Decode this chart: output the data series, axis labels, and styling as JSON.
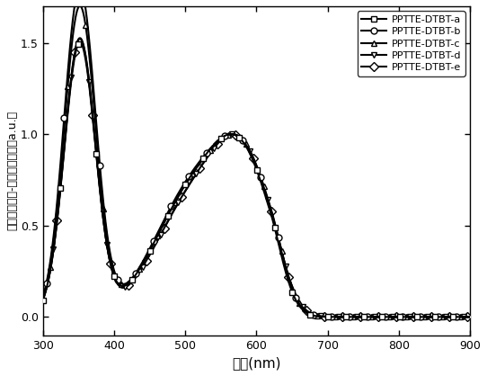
{
  "xlabel": "波长(nm)",
  "ylabel": "归一化的紫外-可见吸收强度（a.u.）",
  "xlim": [
    300,
    900
  ],
  "ylim": [
    -0.1,
    1.7
  ],
  "yticks": [
    0.0,
    0.5,
    1.0,
    1.5
  ],
  "xticks": [
    300,
    400,
    500,
    600,
    700,
    800,
    900
  ],
  "series": [
    {
      "label": "PPTTE-DTBT-a",
      "marker": "s"
    },
    {
      "label": "PPTTE-DTBT-b",
      "marker": "o"
    },
    {
      "label": "PPTTE-DTBT-c",
      "marker": "^"
    },
    {
      "label": "PPTTE-DTBT-d",
      "marker": "v"
    },
    {
      "label": "PPTTE-DTBT-e",
      "marker": "D"
    }
  ],
  "background_color": "#ffffff",
  "line_color": "#000000",
  "line_width": 1.5,
  "marker_size": 5,
  "marker_interval": 25
}
